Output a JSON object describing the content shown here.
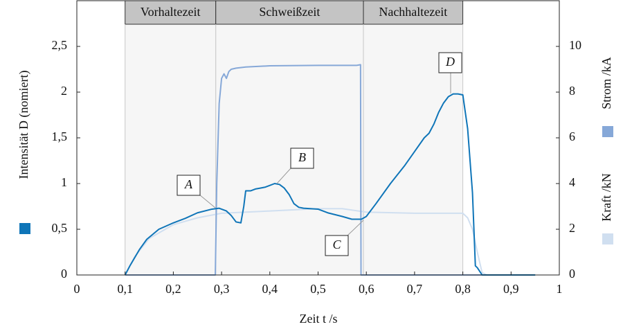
{
  "chart_data": {
    "type": "line",
    "xlabel": "Zeit t /s",
    "xlim": [
      0,
      1
    ],
    "xticks": [
      0,
      {
        "value": 0.1,
        "label": "0,1"
      },
      {
        "value": 0.2,
        "label": "0,2"
      },
      {
        "value": 0.3,
        "label": "0,3"
      },
      {
        "value": 0.4,
        "label": "0,4"
      },
      {
        "value": 0.5,
        "label": "0,5"
      },
      {
        "value": 0.6,
        "label": "0,6"
      },
      {
        "value": 0.7,
        "label": "0,7"
      },
      {
        "value": 0.8,
        "label": "0,8"
      },
      {
        "value": 0.9,
        "label": "0,9"
      },
      1
    ],
    "ylim": [
      0,
      3
    ],
    "yticks": [
      0,
      {
        "value": 0.5,
        "label": "0,5"
      },
      1,
      {
        "value": 1.5,
        "label": "1,5"
      },
      2,
      {
        "value": 2.5,
        "label": "2,5"
      }
    ],
    "y2lim": [
      0,
      12
    ],
    "y2ticks": [
      0,
      2,
      4,
      6,
      8,
      10
    ],
    "grid": false,
    "phases": [
      {
        "label": "Vorhaltezeit",
        "start": 0.1,
        "end": 0.288
      },
      {
        "label": "Schweißzeit",
        "start": 0.288,
        "end": 0.594
      },
      {
        "label": "Nachhaltezeit",
        "start": 0.594,
        "end": 0.8
      }
    ],
    "annotations": [
      "A",
      "B",
      "C",
      "D"
    ],
    "series": [
      {
        "name": "Intensität D (nomiert)",
        "color": "#0f75b8",
        "axis": "y",
        "x": [
          0.1,
          0.11,
          0.13,
          0.145,
          0.17,
          0.2,
          0.225,
          0.25,
          0.28,
          0.295,
          0.31,
          0.32,
          0.33,
          0.34,
          0.346,
          0.35,
          0.36,
          0.37,
          0.38,
          0.39,
          0.4,
          0.41,
          0.42,
          0.43,
          0.44,
          0.45,
          0.46,
          0.47,
          0.5,
          0.52,
          0.55,
          0.57,
          0.59,
          0.6,
          0.62,
          0.65,
          0.68,
          0.7,
          0.72,
          0.73,
          0.74,
          0.75,
          0.76,
          0.77,
          0.78,
          0.79,
          0.8,
          0.81,
          0.82,
          0.826,
          0.83,
          0.84,
          0.95
        ],
        "values": [
          0,
          0.1,
          0.28,
          0.39,
          0.5,
          0.57,
          0.62,
          0.68,
          0.72,
          0.73,
          0.7,
          0.65,
          0.58,
          0.57,
          0.75,
          0.92,
          0.92,
          0.94,
          0.95,
          0.96,
          0.98,
          1.0,
          0.99,
          0.95,
          0.88,
          0.78,
          0.74,
          0.73,
          0.72,
          0.68,
          0.64,
          0.61,
          0.61,
          0.64,
          0.78,
          1.0,
          1.2,
          1.35,
          1.5,
          1.55,
          1.65,
          1.78,
          1.88,
          1.95,
          1.98,
          1.98,
          1.97,
          1.6,
          0.9,
          0.1,
          0.08,
          0,
          0
        ]
      },
      {
        "name": "Strom /kA",
        "color": "#86a8d8",
        "axis": "y2",
        "x": [
          0.1,
          0.287,
          0.29,
          0.295,
          0.3,
          0.305,
          0.31,
          0.315,
          0.32,
          0.33,
          0.35,
          0.4,
          0.5,
          0.58,
          0.588,
          0.589,
          0.95
        ],
        "values": [
          0,
          0,
          4,
          7.5,
          8.6,
          8.8,
          8.6,
          8.9,
          9.0,
          9.05,
          9.1,
          9.15,
          9.17,
          9.17,
          9.2,
          0,
          0
        ]
      },
      {
        "name": "Kraft /kN",
        "color": "#d0dff0",
        "axis": "y2",
        "x": [
          0.1,
          0.12,
          0.15,
          0.2,
          0.25,
          0.3,
          0.4,
          0.5,
          0.55,
          0.6,
          0.7,
          0.8,
          0.81,
          0.82,
          0.83,
          0.84,
          0.85,
          0.95
        ],
        "values": [
          0,
          0.8,
          1.6,
          2.2,
          2.5,
          2.7,
          2.8,
          2.9,
          2.9,
          2.75,
          2.7,
          2.7,
          2.5,
          2.0,
          1.0,
          0.1,
          0,
          0
        ]
      }
    ]
  }
}
